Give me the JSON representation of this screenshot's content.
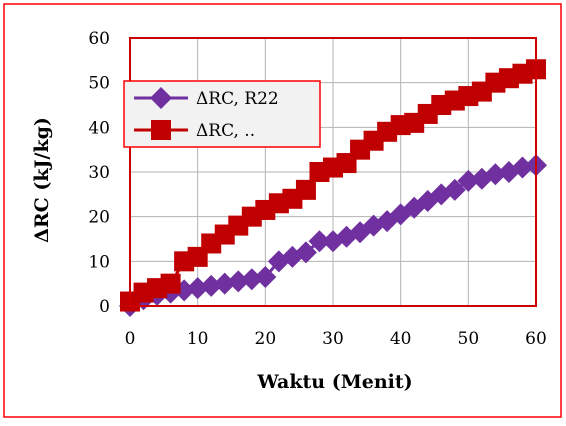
{
  "chart_data": {
    "type": "line",
    "title": "",
    "xlabel": "Waktu (Menit)",
    "ylabel": "ΔRC (kJ/kg)",
    "xlim": [
      0,
      60
    ],
    "ylim": [
      0,
      60
    ],
    "xticks": [
      0,
      10,
      20,
      30,
      40,
      50,
      60
    ],
    "yticks": [
      0,
      10,
      20,
      30,
      40,
      50,
      60
    ],
    "grid": true,
    "legend_position": "top-left",
    "colors": {
      "chart_border": "#ff0000",
      "plot_border": "#cc0000",
      "legend_border": "#ff0000",
      "legend_bg": "#f2f2f2",
      "grid": "#b3b3b3"
    },
    "series": [
      {
        "name": "ΔRC, R22",
        "color": "#7030a0",
        "marker": "diamond",
        "x": [
          0,
          2,
          4,
          6,
          8,
          10,
          12,
          14,
          16,
          18,
          20,
          22,
          24,
          26,
          28,
          30,
          32,
          34,
          36,
          38,
          40,
          42,
          44,
          46,
          48,
          50,
          52,
          54,
          56,
          58,
          60
        ],
        "y": [
          0,
          1.5,
          2.5,
          3,
          3.5,
          4,
          4.5,
          5,
          5.5,
          6,
          6.5,
          10,
          11,
          12,
          14.5,
          14.5,
          15.5,
          16.5,
          18,
          19,
          20.5,
          22,
          23.5,
          25,
          26,
          28,
          28.5,
          29.5,
          30,
          31,
          31.5
        ]
      },
      {
        "name": "ΔRC, ..",
        "color": "#c00000",
        "marker": "square",
        "x": [
          0,
          2,
          4,
          6,
          8,
          10,
          12,
          14,
          16,
          18,
          20,
          22,
          24,
          26,
          28,
          30,
          32,
          34,
          36,
          38,
          40,
          42,
          44,
          46,
          48,
          50,
          52,
          54,
          56,
          58,
          60
        ],
        "y": [
          1,
          3,
          4,
          5,
          10,
          11,
          14,
          16,
          18,
          20,
          21.5,
          23,
          24,
          26,
          30,
          31,
          32,
          35,
          37,
          39,
          40.5,
          41,
          43,
          45,
          46,
          47,
          48,
          50,
          51,
          52,
          53
        ]
      }
    ]
  }
}
